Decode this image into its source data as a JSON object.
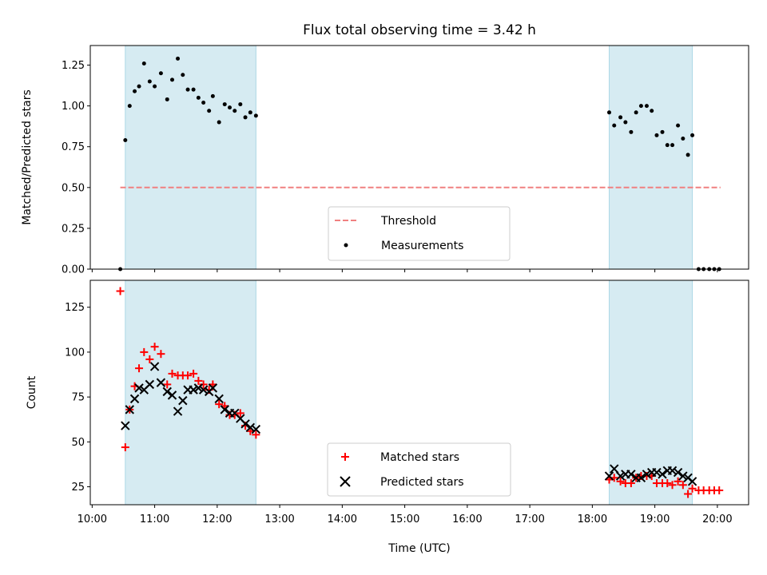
{
  "chart_data": [
    {
      "type": "scatter",
      "title": "Flux total observing time = 3.42 h",
      "ylabel": "Matched/Predicted stars",
      "xlabel": "",
      "ylim": [
        0,
        1.37
      ],
      "yticks": [
        "0.00",
        "0.25",
        "0.50",
        "0.75",
        "1.00",
        "1.25"
      ],
      "legend_position": "lower-center",
      "shaded_spans": [
        [
          10.53,
          12.62
        ],
        [
          18.27,
          19.6
        ]
      ],
      "shade_color": "#add8e6",
      "series": [
        {
          "name": "Threshold",
          "kind": "dashed-line",
          "color": "#f08080",
          "x": [
            10.45,
            20.05
          ],
          "y": [
            0.5,
            0.5
          ]
        },
        {
          "name": "Measurements",
          "kind": "dot",
          "color": "#000000",
          "x": [
            10.45,
            10.53,
            10.6,
            10.68,
            10.75,
            10.83,
            10.92,
            11.0,
            11.1,
            11.2,
            11.28,
            11.37,
            11.45,
            11.53,
            11.62,
            11.7,
            11.78,
            11.87,
            11.93,
            12.03,
            12.12,
            12.2,
            12.28,
            12.37,
            12.45,
            12.53,
            12.62,
            18.27,
            18.35,
            18.45,
            18.53,
            18.62,
            18.7,
            18.78,
            18.87,
            18.95,
            19.03,
            19.12,
            19.2,
            19.28,
            19.37,
            19.45,
            19.53,
            19.6,
            19.7,
            19.78,
            19.87,
            19.95,
            20.03
          ],
          "y": [
            0.0,
            0.79,
            1.0,
            1.09,
            1.12,
            1.26,
            1.15,
            1.12,
            1.2,
            1.04,
            1.16,
            1.29,
            1.19,
            1.1,
            1.1,
            1.05,
            1.02,
            0.97,
            1.06,
            0.9,
            1.01,
            0.99,
            0.97,
            1.01,
            0.93,
            0.96,
            0.94,
            0.96,
            0.88,
            0.93,
            0.9,
            0.84,
            0.96,
            1.0,
            1.0,
            0.97,
            0.82,
            0.84,
            0.76,
            0.76,
            0.88,
            0.8,
            0.7,
            0.82,
            0.0,
            0.0,
            0.0,
            0.0,
            0.0
          ]
        }
      ]
    },
    {
      "type": "scatter",
      "title": "",
      "ylabel": "Count",
      "xlabel": "Time (UTC)",
      "ylim": [
        15,
        140
      ],
      "yticks": [
        "25",
        "50",
        "75",
        "100",
        "125"
      ],
      "xlim": [
        9.97,
        20.5
      ],
      "xticks": [
        "10:00",
        "11:00",
        "12:00",
        "13:00",
        "14:00",
        "15:00",
        "16:00",
        "17:00",
        "18:00",
        "19:00",
        "20:00"
      ],
      "legend_position": "lower-center",
      "shaded_spans": [
        [
          10.53,
          12.62
        ],
        [
          18.27,
          19.6
        ]
      ],
      "shade_color": "#add8e6",
      "series": [
        {
          "name": "Matched stars",
          "marker": "+",
          "color": "#ff0000",
          "x": [
            10.45,
            10.53,
            10.6,
            10.68,
            10.75,
            10.83,
            10.92,
            11.0,
            11.1,
            11.2,
            11.28,
            11.37,
            11.45,
            11.53,
            11.62,
            11.7,
            11.78,
            11.87,
            11.93,
            12.03,
            12.12,
            12.2,
            12.28,
            12.37,
            12.45,
            12.53,
            12.62,
            18.27,
            18.35,
            18.45,
            18.53,
            18.62,
            18.7,
            18.78,
            18.87,
            18.95,
            19.03,
            19.12,
            19.2,
            19.28,
            19.37,
            19.45,
            19.53,
            19.6,
            19.7,
            19.78,
            19.87,
            19.95,
            20.03
          ],
          "y": [
            134,
            47,
            68,
            81,
            91,
            100,
            96,
            103,
            99,
            82,
            88,
            87,
            87,
            87,
            88,
            84,
            82,
            79,
            82,
            71,
            70,
            65,
            65,
            66,
            59,
            56,
            54,
            29,
            30,
            28,
            27,
            27,
            30,
            31,
            31,
            31,
            27,
            27,
            27,
            26,
            28,
            26,
            21,
            24,
            23,
            23,
            23,
            23,
            23
          ]
        },
        {
          "name": "Predicted stars",
          "marker": "x",
          "color": "#000000",
          "x": [
            10.53,
            10.6,
            10.68,
            10.75,
            10.83,
            10.92,
            11.0,
            11.1,
            11.2,
            11.28,
            11.37,
            11.45,
            11.53,
            11.62,
            11.7,
            11.78,
            11.87,
            11.93,
            12.03,
            12.12,
            12.2,
            12.28,
            12.37,
            12.45,
            12.53,
            12.62,
            18.27,
            18.35,
            18.45,
            18.53,
            18.62,
            18.7,
            18.78,
            18.87,
            18.95,
            19.03,
            19.12,
            19.2,
            19.28,
            19.37,
            19.45,
            19.53,
            19.6
          ],
          "y": [
            59,
            68,
            74,
            80,
            79,
            82,
            92,
            83,
            78,
            76,
            67,
            73,
            79,
            79,
            80,
            79,
            78,
            80,
            74,
            68,
            66,
            66,
            63,
            60,
            58,
            57,
            31,
            35,
            31,
            32,
            32,
            30,
            30,
            32,
            33,
            33,
            32,
            34,
            34,
            33,
            31,
            30,
            28
          ]
        }
      ]
    }
  ]
}
